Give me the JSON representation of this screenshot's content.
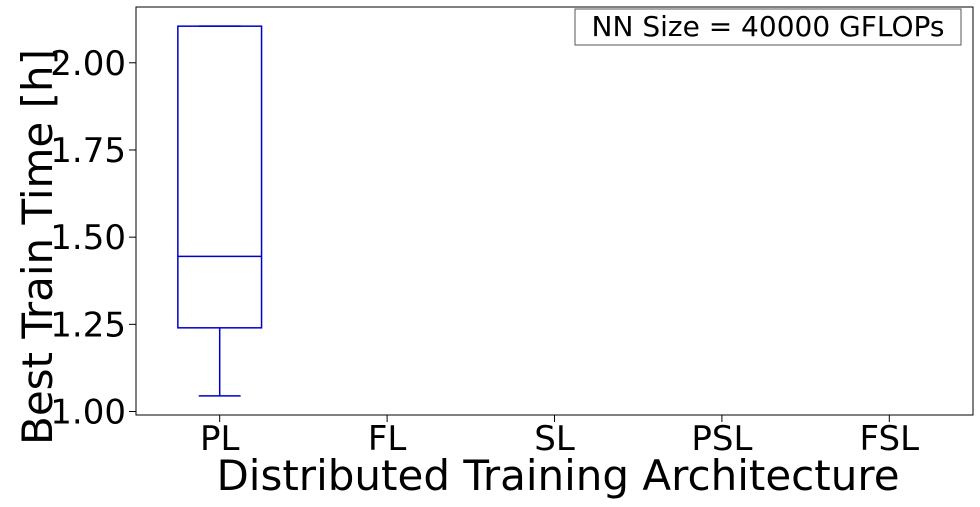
{
  "chart_data": {
    "type": "box",
    "xlabel": "Distributed Training Architecture",
    "ylabel": "Best Train Time [h]",
    "annotation": "NN Size = 40000 GFLOPs",
    "categories": [
      "PL",
      "FL",
      "SL",
      "PSL",
      "FSL"
    ],
    "yticks": [
      1.0,
      1.25,
      1.5,
      1.75,
      2.0
    ],
    "ytick_labels": [
      "1.00",
      "1.25",
      "1.50",
      "1.75",
      "2.00"
    ],
    "ylim": [
      0.99,
      2.16
    ],
    "grid": false,
    "boxes": [
      {
        "category": "PL",
        "whisker_low": 1.045,
        "q1": 1.24,
        "median": 1.445,
        "q3": 2.105,
        "whisker_high": 2.105
      }
    ],
    "box_color": "#0000cc"
  }
}
